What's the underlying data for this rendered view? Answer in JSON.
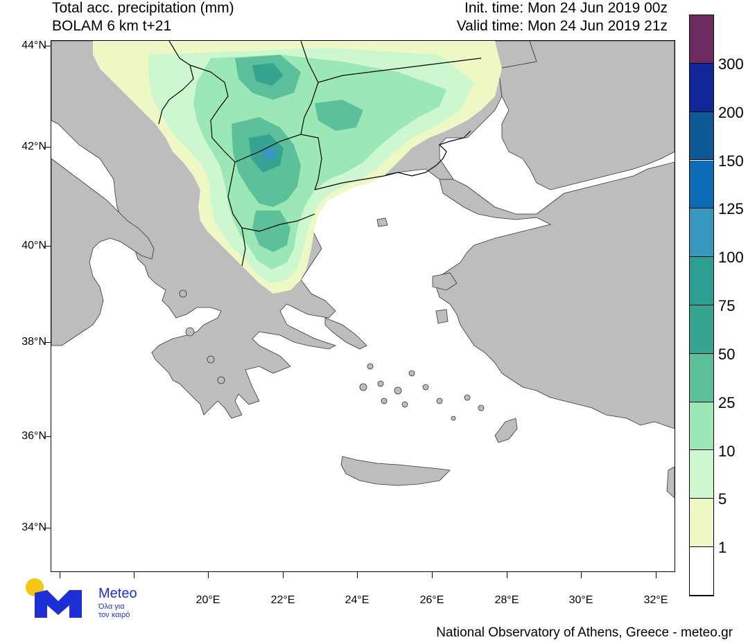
{
  "header": {
    "title_line1": "Total acc. precipitation (mm)",
    "title_line2": "BOLAM 6 km t+21",
    "init_time": "Init. time: Mon 24 Jun 2019 00z",
    "valid_time": "Valid time: Mon 24 Jun 2019 21z"
  },
  "map": {
    "lat_labels": [
      "44°N",
      "42°N",
      "40°N",
      "38°N",
      "36°N",
      "34°N"
    ],
    "lon_labels": [
      "20°E",
      "22°E",
      "24°E",
      "26°E",
      "28°E",
      "30°E",
      "32°E"
    ],
    "colors": {
      "land": "#bdbdbd",
      "sea": "#ffffff",
      "border": "#000000"
    }
  },
  "colorbar": {
    "labels": [
      "1",
      "5",
      "10",
      "25",
      "50",
      "75",
      "100",
      "125",
      "150",
      "200",
      "300"
    ],
    "colors": [
      "#ffffff",
      "#eef8c4",
      "#cdf7cf",
      "#9be8b6",
      "#5cc09a",
      "#36a490",
      "#2b9f92",
      "#3797bd",
      "#0b6bb4",
      "#0e5894",
      "#10289a",
      "#6b2a60"
    ]
  },
  "logo": {
    "name": "Meteo",
    "tagline_1": "Όλα για",
    "tagline_2": "τον καιρό",
    "color": "#1f2fd6"
  },
  "footer": {
    "credit": "National Observatory of Athens, Greece - meteo.gr"
  }
}
